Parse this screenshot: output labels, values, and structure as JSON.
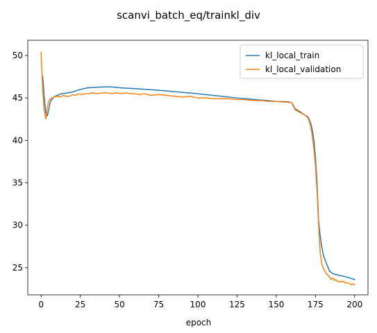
{
  "chart_data": {
    "type": "line",
    "title": "scanvi_batch_eq/trainkl_div",
    "xlabel": "epoch",
    "ylabel": "",
    "xlim": [
      -8.5,
      208.5
    ],
    "ylim": [
      21.8,
      51.8
    ],
    "xticks": [
      0,
      25,
      50,
      75,
      100,
      125,
      150,
      175,
      200
    ],
    "yticks": [
      25,
      30,
      35,
      40,
      45,
      50
    ],
    "legend_position": "top-right",
    "grid": false,
    "series": [
      {
        "name": "kl_local_train",
        "color": "#1f77b4",
        "x": [
          1,
          2,
          3,
          4,
          6,
          8,
          10,
          13,
          17,
          20,
          25,
          30,
          35,
          40,
          45,
          50,
          60,
          75,
          100,
          125,
          150,
          158,
          160,
          161,
          162,
          165,
          168,
          170,
          171,
          172,
          173,
          174,
          175,
          176,
          177,
          178,
          179,
          180,
          182,
          184,
          186,
          190,
          195,
          200
        ],
        "y": [
          47.6,
          45.1,
          43.2,
          42.9,
          44.6,
          45.1,
          45.3,
          45.5,
          45.6,
          45.7,
          46.0,
          46.2,
          46.25,
          46.3,
          46.3,
          46.2,
          46.1,
          45.9,
          45.5,
          45.0,
          44.6,
          44.55,
          44.4,
          44.1,
          43.7,
          43.4,
          43.0,
          42.8,
          42.5,
          42.0,
          41.2,
          40.0,
          38.0,
          35.0,
          30.5,
          28.8,
          27.5,
          26.5,
          25.5,
          24.6,
          24.3,
          24.1,
          23.9,
          23.6
        ]
      },
      {
        "name": "kl_local_validation",
        "color": "#ff7f0e",
        "x": [
          0,
          1,
          2,
          3,
          4,
          5,
          6,
          8,
          10,
          12,
          14,
          16,
          18,
          20,
          22,
          24,
          26,
          28,
          30,
          33,
          36,
          39,
          42,
          45,
          48,
          51,
          54,
          57,
          60,
          63,
          66,
          70,
          75,
          80,
          85,
          90,
          95,
          100,
          105,
          110,
          115,
          120,
          125,
          130,
          135,
          140,
          145,
          150,
          155,
          158,
          160,
          161,
          162,
          165,
          168,
          170,
          171,
          172,
          173,
          174,
          175,
          176,
          177,
          178,
          179,
          180,
          181,
          182,
          183,
          184,
          185,
          186,
          187,
          188,
          189,
          190,
          191,
          192,
          193,
          194,
          195,
          196,
          197,
          198,
          199,
          200
        ],
        "y": [
          50.4,
          46.0,
          43.5,
          42.5,
          43.9,
          44.7,
          44.9,
          45.1,
          45.2,
          45.1,
          45.3,
          45.2,
          45.2,
          45.4,
          45.3,
          45.5,
          45.4,
          45.5,
          45.5,
          45.6,
          45.5,
          45.6,
          45.6,
          45.5,
          45.6,
          45.5,
          45.6,
          45.5,
          45.5,
          45.4,
          45.5,
          45.3,
          45.4,
          45.3,
          45.2,
          45.1,
          45.2,
          45.0,
          45.0,
          44.9,
          44.9,
          44.9,
          44.8,
          44.8,
          44.7,
          44.7,
          44.6,
          44.6,
          44.5,
          44.5,
          44.4,
          44.0,
          43.6,
          43.3,
          43.0,
          42.7,
          42.3,
          41.6,
          40.5,
          39.0,
          37.0,
          34.0,
          30.0,
          26.8,
          25.5,
          24.9,
          24.6,
          24.3,
          24.1,
          23.9,
          23.6,
          23.8,
          23.5,
          23.6,
          23.4,
          23.3,
          23.4,
          23.3,
          23.4,
          23.2,
          23.2,
          23.2,
          23.1,
          23.0,
          23.1,
          23.0
        ]
      }
    ]
  }
}
